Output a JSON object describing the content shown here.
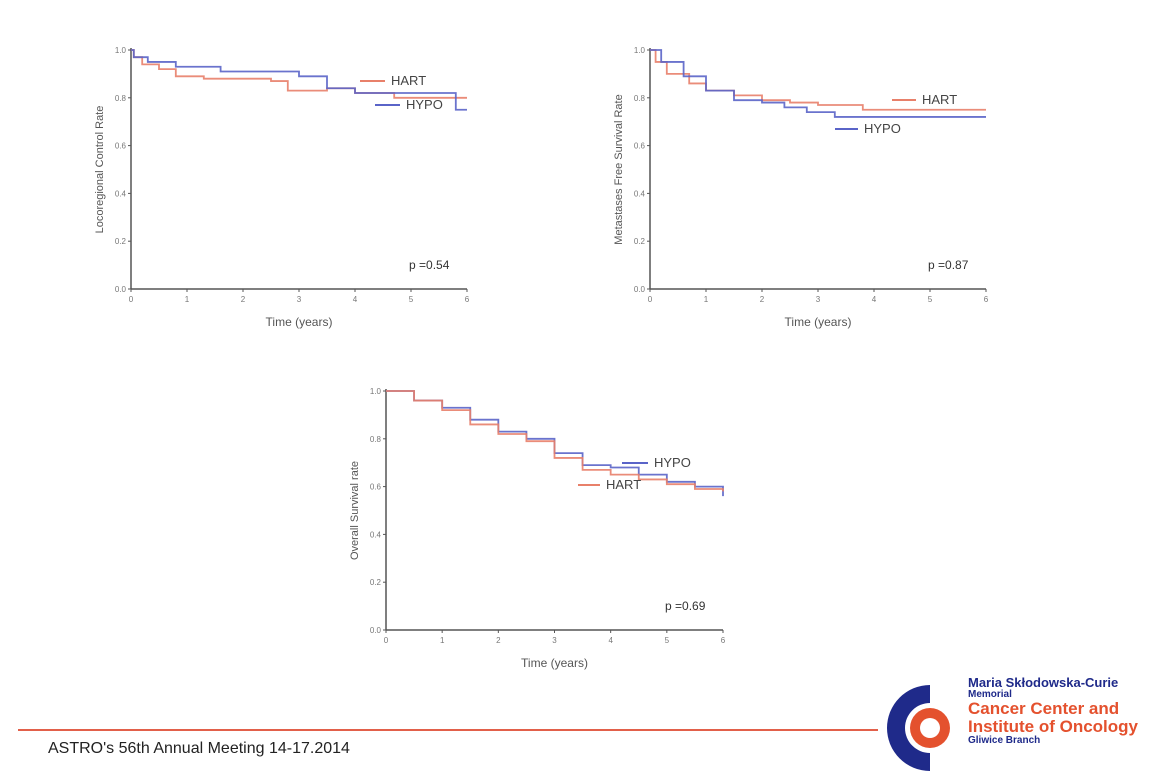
{
  "chart_data": [
    {
      "type": "line",
      "title": "",
      "xlabel": "Time (years)",
      "ylabel": "Locoregional Control Rate",
      "xlim": [
        0,
        6
      ],
      "ylim": [
        0,
        1
      ],
      "xticks": [
        "0",
        "1",
        "2",
        "3",
        "4",
        "5",
        "6"
      ],
      "yticks": [
        "0.0",
        "0.2",
        "0.4",
        "0.6",
        "0.8",
        "1.0"
      ],
      "annotation": "p =0.54",
      "series": [
        {
          "name": "HART",
          "color": "#e8806a",
          "x": [
            0,
            0.05,
            0.2,
            0.5,
            0.8,
            1.3,
            2.5,
            2.8,
            3.5,
            4.0,
            4.7,
            6
          ],
          "y": [
            1,
            0.97,
            0.94,
            0.92,
            0.89,
            0.88,
            0.87,
            0.83,
            0.84,
            0.82,
            0.8,
            0.8
          ]
        },
        {
          "name": "HYPO",
          "color": "#5a64c8",
          "x": [
            0,
            0.05,
            0.3,
            0.8,
            1.6,
            3.0,
            3.5,
            4.0,
            5.8,
            6
          ],
          "y": [
            1,
            0.97,
            0.95,
            0.93,
            0.91,
            0.89,
            0.84,
            0.82,
            0.75,
            0.75
          ]
        }
      ]
    },
    {
      "type": "line",
      "title": "",
      "xlabel": "Time (years)",
      "ylabel": "Metastases Free Survival Rate",
      "xlim": [
        0,
        6
      ],
      "ylim": [
        0,
        1
      ],
      "xticks": [
        "0",
        "1",
        "2",
        "3",
        "4",
        "5",
        "6"
      ],
      "yticks": [
        "0.0",
        "0.2",
        "0.4",
        "0.6",
        "0.8",
        "1.0"
      ],
      "annotation": "p =0.87",
      "series": [
        {
          "name": "HART",
          "color": "#e8806a",
          "x": [
            0,
            0.1,
            0.3,
            0.7,
            1.0,
            1.5,
            2.0,
            2.5,
            3.0,
            3.8,
            6
          ],
          "y": [
            1,
            0.95,
            0.9,
            0.86,
            0.83,
            0.81,
            0.79,
            0.78,
            0.77,
            0.75,
            0.75
          ]
        },
        {
          "name": "HYPO",
          "color": "#5a64c8",
          "x": [
            0,
            0.2,
            0.6,
            1.0,
            1.5,
            2.0,
            2.4,
            2.8,
            3.3,
            6
          ],
          "y": [
            1,
            0.95,
            0.89,
            0.83,
            0.79,
            0.78,
            0.76,
            0.74,
            0.72,
            0.72
          ]
        }
      ]
    },
    {
      "type": "line",
      "title": "",
      "xlabel": "Time (years)",
      "ylabel": "Overall Survival rate",
      "xlim": [
        0,
        6
      ],
      "ylim": [
        0,
        1
      ],
      "xticks": [
        "0",
        "1",
        "2",
        "3",
        "4",
        "5",
        "6"
      ],
      "yticks": [
        "0.0",
        "0.2",
        "0.4",
        "0.6",
        "0.8",
        "1.0"
      ],
      "annotation": "p =0.69",
      "series": [
        {
          "name": "HYPO",
          "color": "#5a64c8",
          "x": [
            0,
            0.5,
            1,
            1.5,
            2,
            2.5,
            3,
            3.5,
            4,
            4.5,
            5,
            5.5,
            6
          ],
          "y": [
            1,
            0.96,
            0.93,
            0.88,
            0.83,
            0.8,
            0.74,
            0.69,
            0.68,
            0.65,
            0.62,
            0.6,
            0.56
          ]
        },
        {
          "name": "HART",
          "color": "#e8806a",
          "x": [
            0,
            0.5,
            1,
            1.5,
            2,
            2.5,
            3,
            3.5,
            4,
            4.5,
            5,
            5.5,
            6
          ],
          "y": [
            1,
            0.96,
            0.92,
            0.86,
            0.82,
            0.79,
            0.72,
            0.67,
            0.65,
            0.63,
            0.61,
            0.59,
            0.58
          ]
        }
      ]
    }
  ],
  "footer": {
    "text": "ASTRO's  56th Annual Meeting  14-17.2014"
  },
  "logo": {
    "line1": "Maria Skłodowska-Curie",
    "line2": "Memorial",
    "line3": "Cancer Center and",
    "line4": "Institute of Oncology",
    "line5": "Gliwice Branch"
  }
}
